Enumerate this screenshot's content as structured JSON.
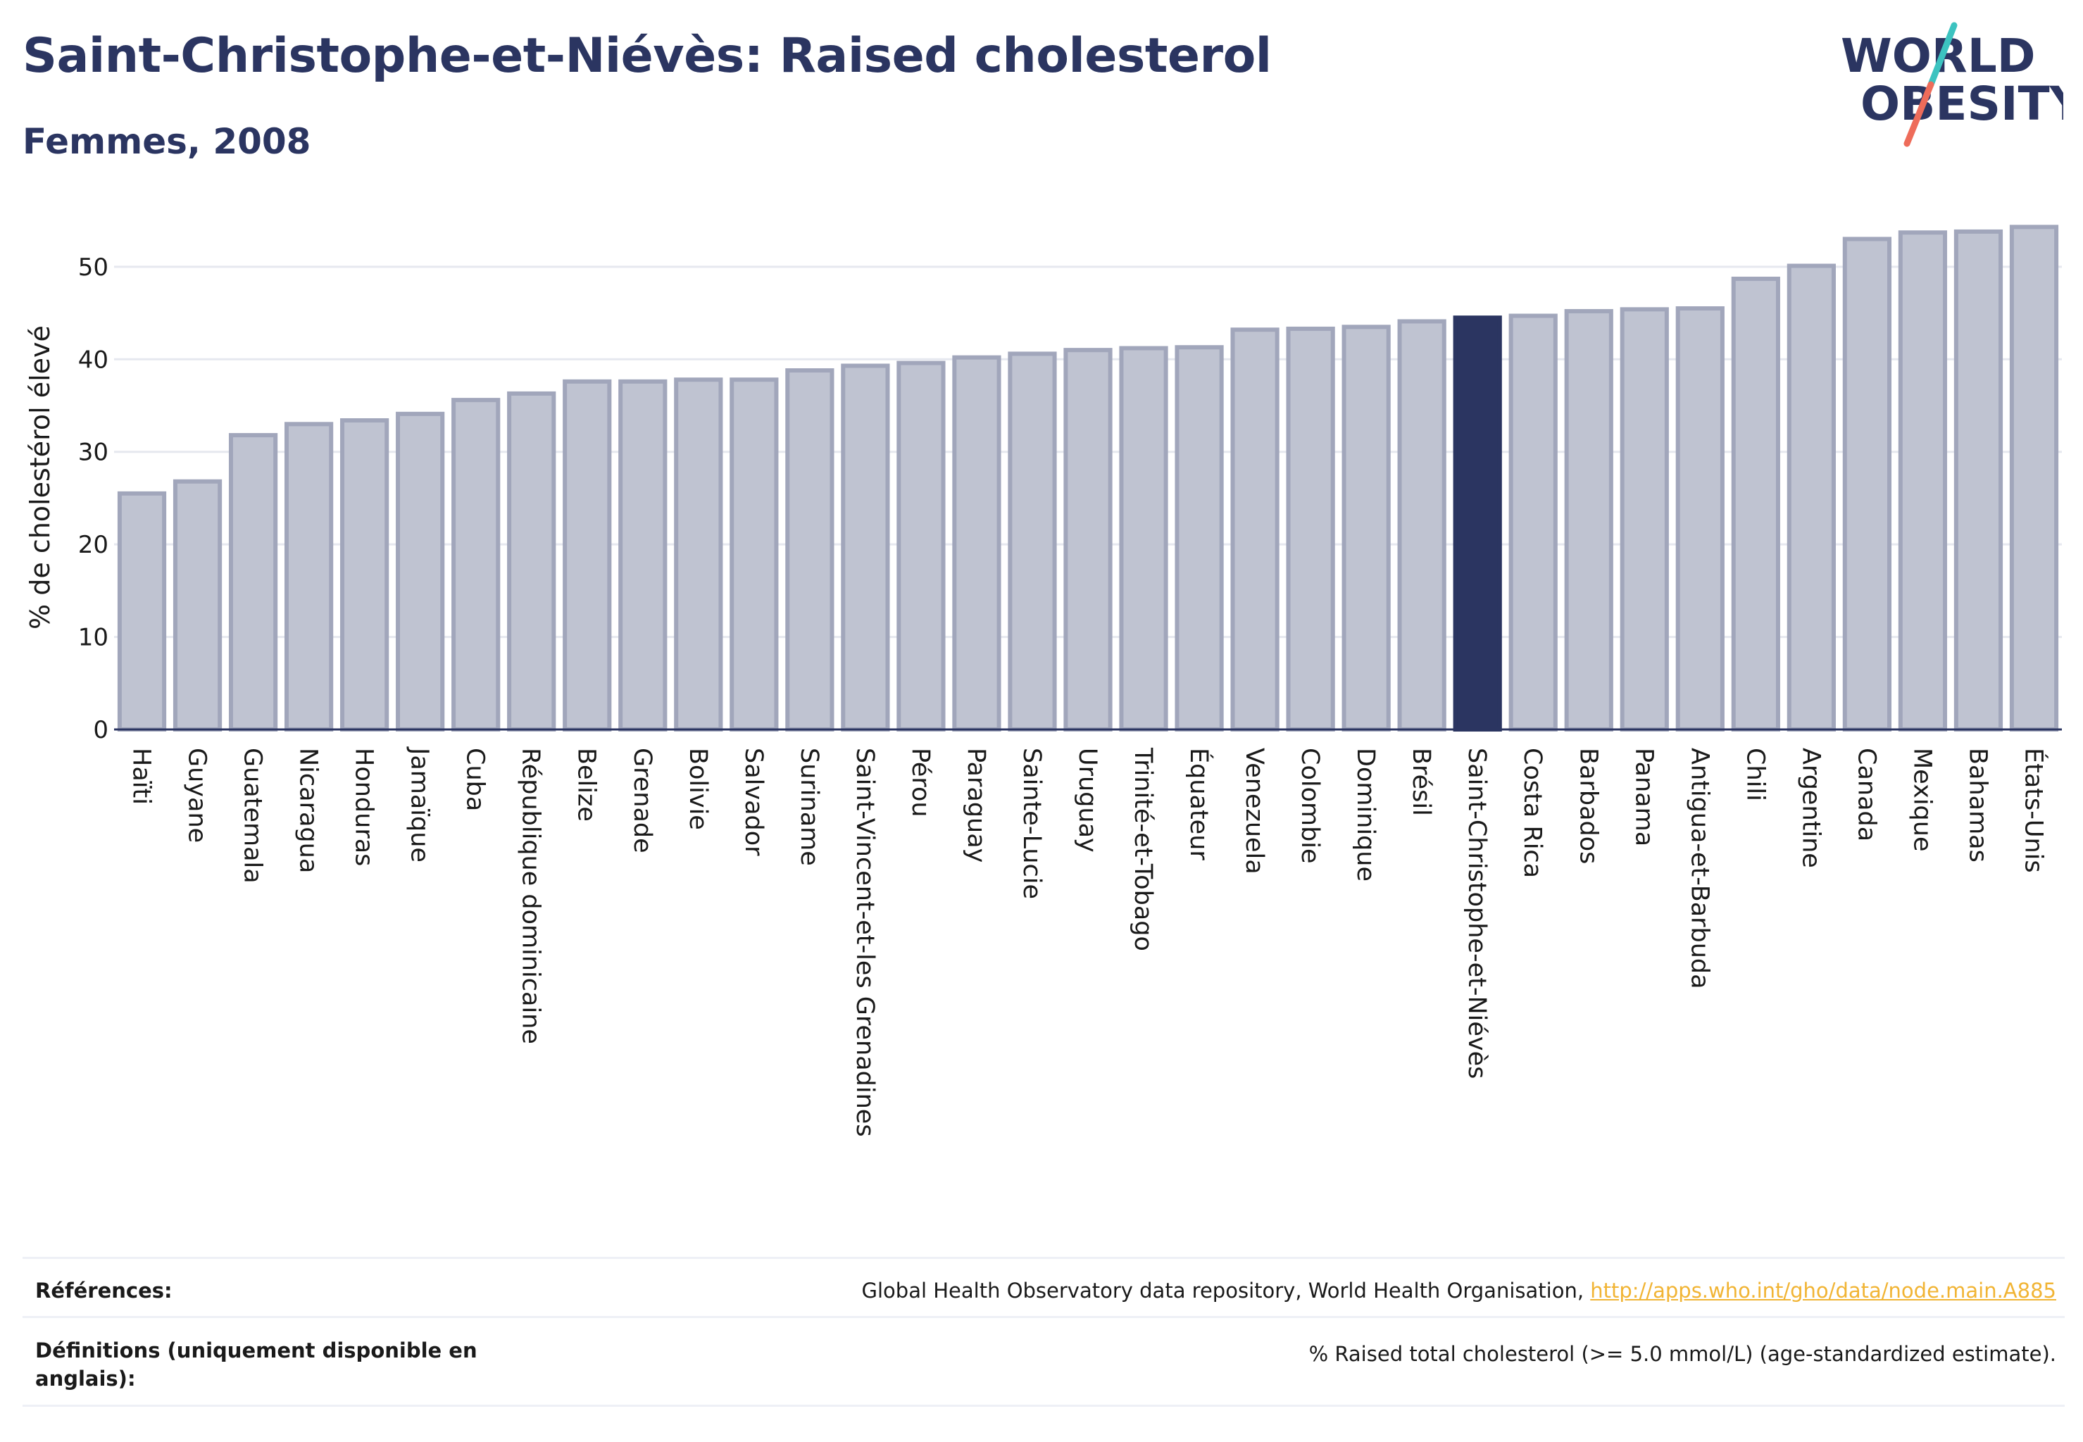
{
  "header": {
    "title": "Saint-Christophe-et-Niévès: Raised cholesterol",
    "subtitle": "Femmes, 2008"
  },
  "logo": {
    "line1": "WORLD",
    "line2": "OBESITY",
    "colors": {
      "text": "#2b3561",
      "accent_teal": "#3cc3c0",
      "accent_coral": "#ee6c5a"
    }
  },
  "colors": {
    "bar_fill": "#bfc3d1",
    "bar_stroke": "#a1a6bb",
    "highlight": "#2b3561",
    "grid": "#e6e8ef",
    "axis": "#2b3561",
    "title": "#2b3561",
    "link": "#f1b434"
  },
  "chart_data": {
    "type": "bar",
    "ylabel": "% de cholestérol élevé",
    "ylim": [
      0,
      56
    ],
    "yticks": [
      0,
      10,
      20,
      30,
      40,
      50
    ],
    "grid": true,
    "highlight": "Saint-Christophe-et-Niévès",
    "categories": [
      "Haïti",
      "Guyane",
      "Guatemala",
      "Nicaragua",
      "Honduras",
      "Jamaïque",
      "Cuba",
      "République dominicaine",
      "Belize",
      "Grenade",
      "Bolivie",
      "Salvador",
      "Suriname",
      "Saint-Vincent-et-les Grenadines",
      "Pérou",
      "Paraguay",
      "Sainte-Lucie",
      "Uruguay",
      "Trinité-et-Tobago",
      "Équateur",
      "Venezuela",
      "Colombie",
      "Dominique",
      "Brésil",
      "Saint-Christophe-et-Niévès",
      "Costa Rica",
      "Barbados",
      "Panama",
      "Antigua-et-Barbuda",
      "Chili",
      "Argentine",
      "Canada",
      "Mexique",
      "Bahamas",
      "États-Unis"
    ],
    "values": [
      25.5,
      26.8,
      31.8,
      33.0,
      33.4,
      34.1,
      35.6,
      36.3,
      37.6,
      37.6,
      37.8,
      37.8,
      38.8,
      39.3,
      39.6,
      40.2,
      40.6,
      41.0,
      41.2,
      41.3,
      43.2,
      43.3,
      43.5,
      44.1,
      44.5,
      44.7,
      45.2,
      45.4,
      45.5,
      48.7,
      50.1,
      53.0,
      53.7,
      53.8,
      54.3
    ]
  },
  "references": {
    "label": "Références:",
    "text": "Global Health Observatory data repository, World Health Organisation, ",
    "link": "http://apps.who.int/gho/data/node.main.A885"
  },
  "definitions": {
    "label_line1": "Définitions (uniquement disponible en",
    "label_line2": "anglais):",
    "text": "% Raised total cholesterol (>= 5.0 mmol/L) (age-standardized estimate)."
  }
}
